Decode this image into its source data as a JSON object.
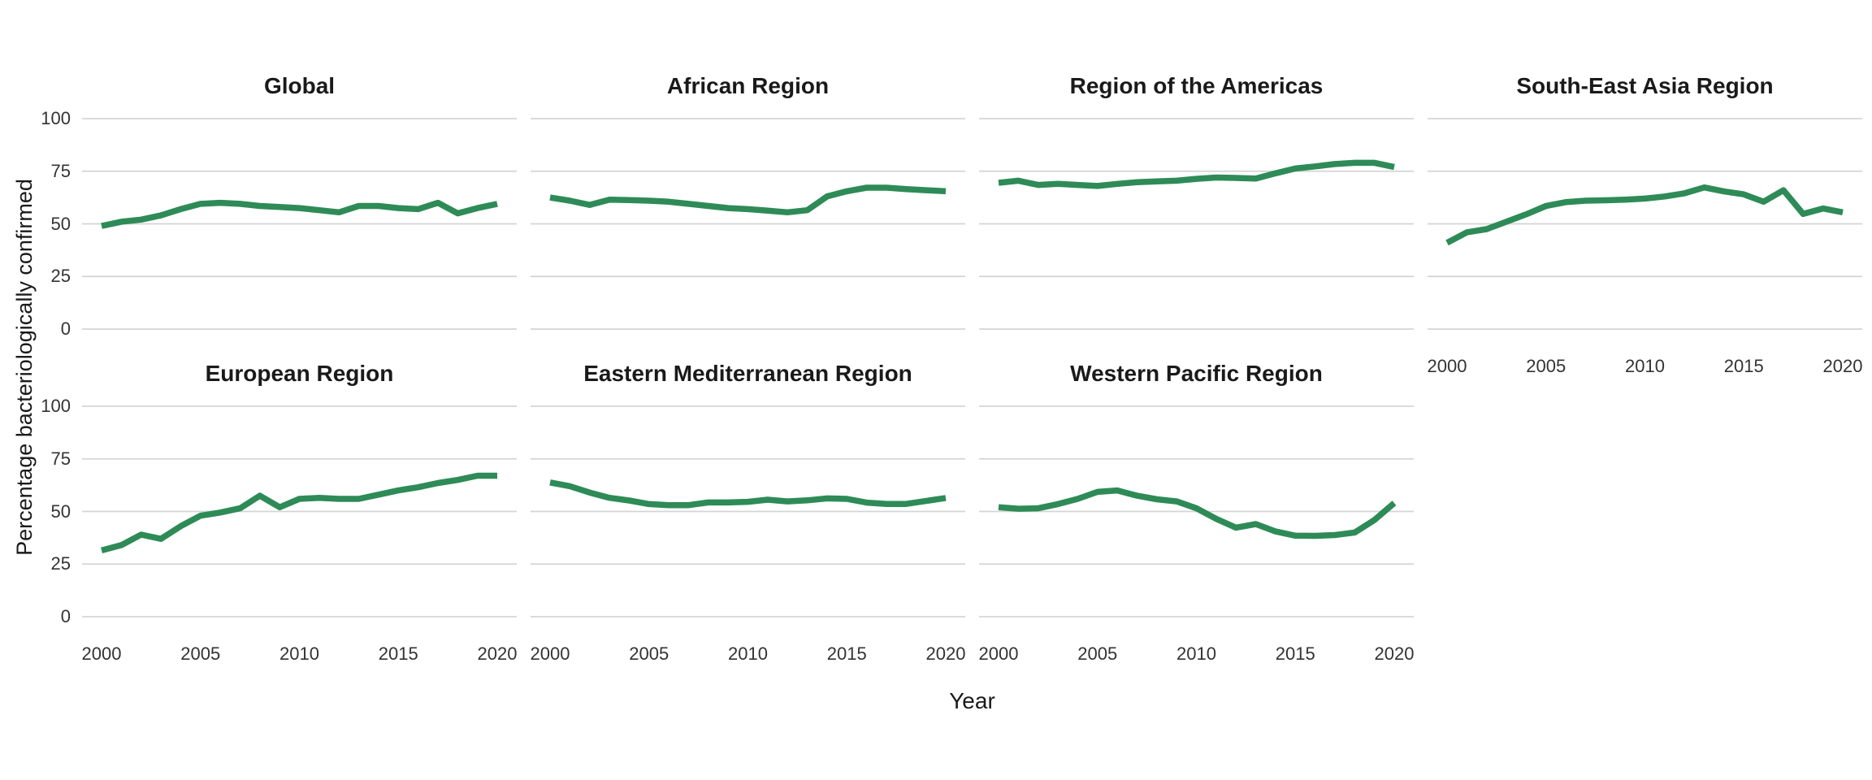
{
  "figure": {
    "y_axis_label": "Percentage bacteriologically confirmed",
    "x_axis_label": "Year",
    "line_color": "#2e8b57",
    "gridline_color": "#d4d4d4",
    "title_color": "#1a1a1a",
    "tick_color": "#333333",
    "background_color": "#ffffff"
  },
  "chart_data": {
    "type": "line",
    "title": "",
    "xlabel": "Year",
    "ylabel": "Percentage bacteriologically confirmed",
    "x": [
      2000,
      2001,
      2002,
      2003,
      2004,
      2005,
      2006,
      2007,
      2008,
      2009,
      2010,
      2011,
      2012,
      2013,
      2014,
      2015,
      2016,
      2017,
      2018,
      2019,
      2020
    ],
    "x_tick_labels": [
      "2000",
      "2005",
      "2010",
      "2015",
      "2020"
    ],
    "y_tick_labels": [
      "100",
      "75",
      "50",
      "25",
      "0"
    ],
    "ylim": [
      0,
      100
    ],
    "xlim": [
      2000,
      2020
    ],
    "grid": "horizontal-only",
    "legend": "none",
    "layout": "2 rows x 4 columns of facets, last cell of row 2 empty",
    "facets": [
      {
        "title": "Global",
        "row": 1,
        "col": 1,
        "values": [
          49,
          51,
          52,
          54,
          57,
          59.5,
          60,
          59.5,
          58.5,
          58,
          57.5,
          56.5,
          55.5,
          58.5,
          58.5,
          57.5,
          57,
          60,
          55,
          57.5,
          59.5
        ]
      },
      {
        "title": "African Region",
        "row": 1,
        "col": 2,
        "values": [
          62.5,
          61,
          59,
          61.5,
          61.3,
          61,
          60.5,
          59.5,
          58.5,
          57.5,
          57,
          56.3,
          55.5,
          56.5,
          63,
          65.5,
          67.2,
          67.2,
          66.5,
          66,
          65.5
        ]
      },
      {
        "title": "Region of the Americas",
        "row": 1,
        "col": 3,
        "values": [
          69.5,
          70.5,
          68.5,
          69,
          68.5,
          68,
          69,
          69.8,
          70.2,
          70.5,
          71.4,
          72,
          71.8,
          71.5,
          74,
          76.3,
          77.3,
          78.4,
          79,
          79,
          77
        ]
      },
      {
        "title": "South-East Asia Region",
        "row": 1,
        "col": 4,
        "values": [
          41,
          46,
          47.5,
          51,
          54.5,
          58.5,
          60.3,
          61,
          61.2,
          61.5,
          62,
          63,
          64.5,
          67.3,
          65.4,
          64,
          60.5,
          66,
          54.7,
          57.3,
          55.5
        ]
      },
      {
        "title": "European Region",
        "row": 2,
        "col": 1,
        "values": [
          31.5,
          34,
          39,
          37,
          43,
          48,
          49.5,
          51.5,
          57.5,
          52,
          56,
          56.5,
          56,
          56,
          58,
          60,
          61.5,
          63.5,
          65,
          67,
          67
        ]
      },
      {
        "title": "Eastern Mediterranean Region",
        "row": 2,
        "col": 2,
        "values": [
          63.8,
          62,
          59,
          56.5,
          55.2,
          53.5,
          53,
          53,
          54.3,
          54.3,
          54.6,
          55.6,
          54.8,
          55.3,
          56.2,
          56,
          54.2,
          53.6,
          53.6,
          55,
          56.4
        ]
      },
      {
        "title": "Western Pacific Region",
        "row": 2,
        "col": 3,
        "values": [
          52,
          51.3,
          51.5,
          53.5,
          56,
          59.3,
          60,
          57.5,
          55.8,
          54.8,
          51.5,
          46.5,
          42.3,
          44,
          40.5,
          38.5,
          38.4,
          38.8,
          40,
          46,
          54
        ]
      }
    ]
  }
}
